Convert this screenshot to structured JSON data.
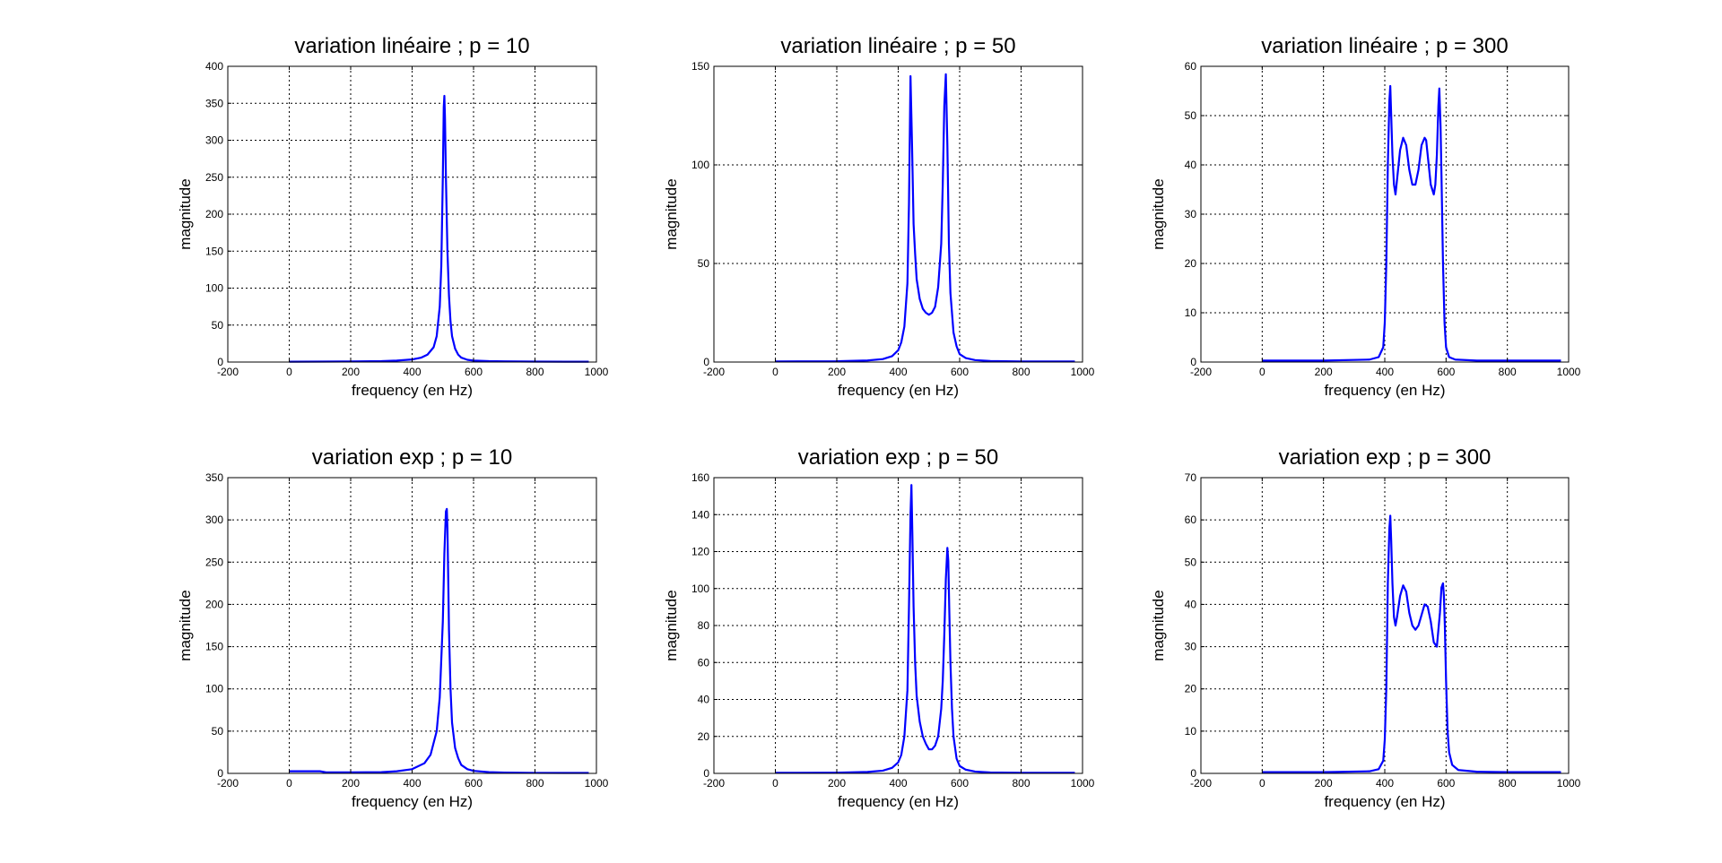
{
  "figure": {
    "background": "#ffffff",
    "line_color": "#0000ff",
    "grid_style": "dotted",
    "grid": true
  },
  "chart_data": [
    {
      "type": "line",
      "title": "variation linéaire ; p = 10",
      "xlabel": "frequency (en Hz)",
      "ylabel": "magnitude",
      "xlim": [
        -200,
        1000
      ],
      "ylim": [
        0,
        400
      ],
      "xticks": [
        -200,
        0,
        200,
        400,
        600,
        800,
        1000
      ],
      "yticks": [
        0,
        50,
        100,
        150,
        200,
        250,
        300,
        350,
        400
      ],
      "grid": true,
      "series": [
        {
          "color": "#0000ff",
          "x": [
            0,
            100,
            200,
            300,
            350,
            400,
            430,
            450,
            470,
            480,
            490,
            495,
            500,
            503,
            505,
            507,
            510,
            515,
            520,
            525,
            530,
            540,
            550,
            560,
            580,
            600,
            650,
            700,
            800,
            900,
            975
          ],
          "y": [
            0.5,
            0.6,
            0.8,
            1.2,
            2,
            3.5,
            6,
            10,
            20,
            35,
            75,
            130,
            250,
            345,
            360,
            330,
            250,
            150,
            90,
            55,
            35,
            18,
            10,
            6,
            3,
            2,
            1.2,
            0.9,
            0.6,
            0.5,
            0.5
          ]
        }
      ]
    },
    {
      "type": "line",
      "title": "variation linéaire ; p = 50",
      "xlabel": "frequency (en Hz)",
      "ylabel": "magnitude",
      "xlim": [
        -200,
        1000
      ],
      "ylim": [
        0,
        150
      ],
      "xticks": [
        -200,
        0,
        200,
        400,
        600,
        800,
        1000
      ],
      "yticks": [
        0,
        50,
        100,
        150
      ],
      "grid": true,
      "series": [
        {
          "color": "#0000ff",
          "x": [
            0,
            200,
            300,
            350,
            380,
            400,
            410,
            420,
            430,
            435,
            440,
            445,
            450,
            455,
            460,
            470,
            480,
            490,
            500,
            510,
            520,
            530,
            540,
            545,
            550,
            555,
            560,
            565,
            570,
            580,
            590,
            600,
            620,
            650,
            700,
            800,
            975
          ],
          "y": [
            0.3,
            0.4,
            0.8,
            1.5,
            3,
            6,
            10,
            18,
            40,
            80,
            145,
            110,
            70,
            55,
            42,
            32,
            27,
            25,
            24,
            25,
            28,
            38,
            60,
            90,
            130,
            146,
            110,
            60,
            35,
            15,
            8,
            4,
            2,
            1,
            0.5,
            0.3,
            0.3
          ]
        }
      ]
    },
    {
      "type": "line",
      "title": "variation linéaire ; p = 300",
      "xlabel": "frequency (en Hz)",
      "ylabel": "magnitude",
      "xlim": [
        -200,
        1000
      ],
      "ylim": [
        0,
        60
      ],
      "xticks": [
        -200,
        0,
        200,
        400,
        600,
        800,
        1000
      ],
      "yticks": [
        0,
        10,
        20,
        30,
        40,
        50,
        60
      ],
      "grid": true,
      "series": [
        {
          "color": "#0000ff",
          "x": [
            0,
            200,
            350,
            380,
            395,
            400,
            405,
            410,
            415,
            418,
            421,
            425,
            430,
            435,
            440,
            450,
            460,
            470,
            480,
            490,
            500,
            510,
            520,
            530,
            535,
            540,
            550,
            560,
            565,
            570,
            575,
            578,
            582,
            585,
            590,
            595,
            600,
            610,
            630,
            700,
            800,
            975
          ],
          "y": [
            0.3,
            0.3,
            0.5,
            1,
            3,
            8,
            20,
            40,
            53,
            56,
            50,
            42,
            36,
            34,
            37,
            43,
            45.5,
            44,
            39,
            36,
            36,
            39,
            44,
            45.5,
            45,
            42,
            36,
            34,
            36,
            42,
            52,
            55.5,
            48,
            38,
            20,
            8,
            3,
            1,
            0.5,
            0.3,
            0.3,
            0.3
          ]
        }
      ]
    },
    {
      "type": "line",
      "title": "variation exp ; p = 10",
      "xlabel": "frequency (en Hz)",
      "ylabel": "magnitude",
      "xlim": [
        -200,
        1000
      ],
      "ylim": [
        0,
        350
      ],
      "xticks": [
        -200,
        0,
        200,
        400,
        600,
        800,
        1000
      ],
      "yticks": [
        0,
        50,
        100,
        150,
        200,
        250,
        300,
        350
      ],
      "grid": true,
      "series": [
        {
          "color": "#0000ff",
          "x": [
            0,
            100,
            120,
            200,
            300,
            350,
            400,
            440,
            460,
            480,
            490,
            500,
            505,
            510,
            513,
            515,
            518,
            520,
            525,
            530,
            540,
            550,
            560,
            580,
            600,
            650,
            700,
            800,
            900,
            975
          ],
          "y": [
            2.5,
            2.5,
            1.2,
            1.2,
            1.5,
            2.5,
            5,
            12,
            22,
            50,
            90,
            180,
            260,
            310,
            313,
            290,
            220,
            170,
            100,
            60,
            30,
            18,
            10,
            5,
            3,
            1.5,
            1,
            0.6,
            0.5,
            0.5
          ]
        }
      ]
    },
    {
      "type": "line",
      "title": "variation exp ; p = 50",
      "xlabel": "frequency (en Hz)",
      "ylabel": "magnitude",
      "xlim": [
        -200,
        1000
      ],
      "ylim": [
        0,
        160
      ],
      "xticks": [
        -200,
        0,
        200,
        400,
        600,
        800,
        1000
      ],
      "yticks": [
        0,
        20,
        40,
        60,
        80,
        100,
        120,
        140,
        160
      ],
      "grid": true,
      "series": [
        {
          "color": "#0000ff",
          "x": [
            0,
            200,
            300,
            350,
            380,
            400,
            410,
            420,
            430,
            435,
            440,
            443,
            446,
            450,
            455,
            460,
            470,
            480,
            490,
            500,
            510,
            520,
            530,
            540,
            545,
            550,
            555,
            560,
            563,
            566,
            570,
            575,
            580,
            590,
            600,
            620,
            650,
            700,
            800,
            975
          ],
          "y": [
            0.3,
            0.4,
            0.8,
            1.5,
            3,
            6,
            10,
            20,
            45,
            90,
            140,
            156,
            130,
            90,
            60,
            42,
            28,
            20,
            16,
            13,
            13,
            15,
            20,
            35,
            50,
            75,
            105,
            122,
            115,
            90,
            60,
            35,
            20,
            8,
            4,
            2,
            1,
            0.5,
            0.3,
            0.3
          ]
        }
      ]
    },
    {
      "type": "line",
      "title": "variation exp ; p = 300",
      "xlabel": "frequency (en Hz)",
      "ylabel": "magnitude",
      "xlim": [
        -200,
        1000
      ],
      "ylim": [
        0,
        70
      ],
      "xticks": [
        -200,
        0,
        200,
        400,
        600,
        800,
        1000
      ],
      "yticks": [
        0,
        10,
        20,
        30,
        40,
        50,
        60,
        70
      ],
      "grid": true,
      "series": [
        {
          "color": "#0000ff",
          "x": [
            0,
            200,
            350,
            380,
            395,
            400,
            405,
            410,
            415,
            418,
            421,
            425,
            430,
            435,
            440,
            450,
            460,
            470,
            480,
            490,
            500,
            510,
            520,
            530,
            540,
            550,
            560,
            570,
            580,
            585,
            590,
            593,
            596,
            600,
            605,
            610,
            620,
            640,
            700,
            800,
            975
          ],
          "y": [
            0.3,
            0.3,
            0.5,
            1,
            3,
            8,
            20,
            45,
            58,
            61,
            55,
            45,
            37,
            35,
            37,
            42,
            44.5,
            43,
            38,
            35,
            34,
            35,
            37.5,
            40,
            39.5,
            36,
            31,
            30,
            38,
            44,
            45,
            42,
            35,
            22,
            10,
            5,
            2,
            0.8,
            0.4,
            0.3,
            0.3
          ]
        }
      ]
    }
  ]
}
